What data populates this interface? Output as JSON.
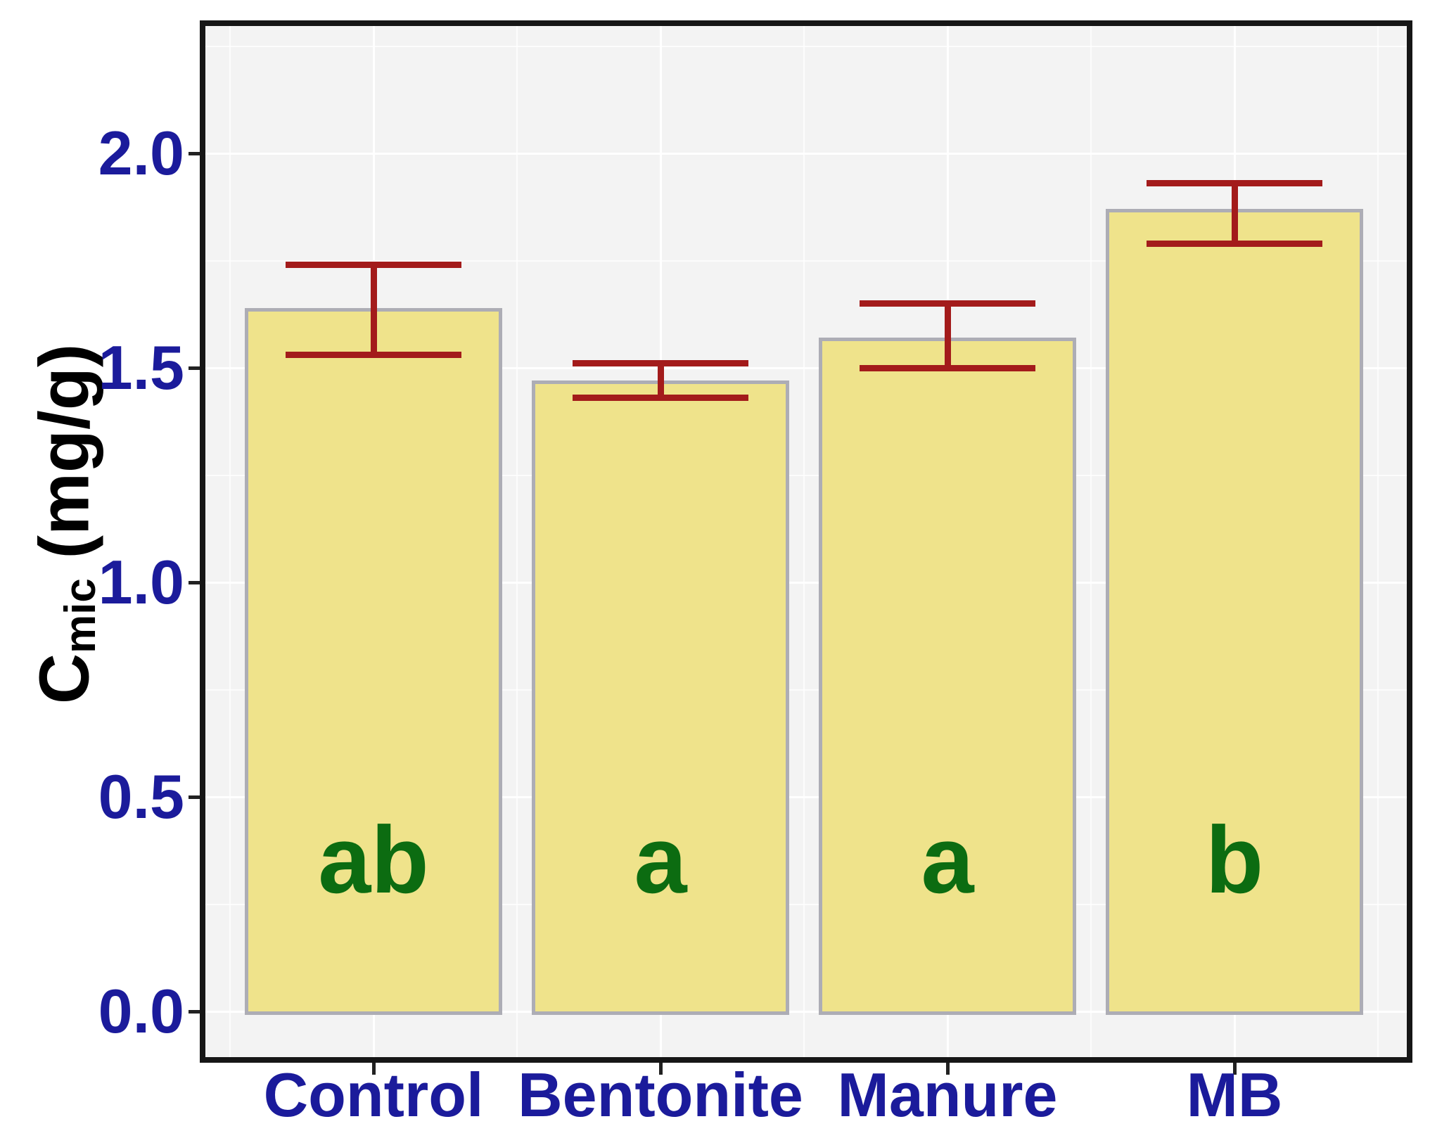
{
  "y_axis": {
    "title_main": "C",
    "title_sub": "mic",
    "title_unit": " (mg/g)",
    "tick_labels": [
      "0.0",
      "0.5",
      "1.0",
      "1.5",
      "2.0"
    ]
  },
  "x_axis": {
    "category_labels": [
      "Control",
      "Bentonite",
      "Manure",
      "MB"
    ]
  },
  "chart_data": {
    "type": "bar",
    "categories": [
      "Control",
      "Bentonite",
      "Manure",
      "MB"
    ],
    "values": [
      1.64,
      1.47,
      1.57,
      1.87
    ],
    "error_low": [
      1.53,
      1.43,
      1.5,
      1.79
    ],
    "error_high": [
      1.74,
      1.51,
      1.65,
      1.93
    ],
    "sig_letters": [
      "ab",
      "a",
      "a",
      "b"
    ],
    "title": "",
    "xlabel": "",
    "ylabel": "Cmic (mg/g)",
    "ylim": [
      -0.11,
      2.3
    ],
    "ytick_values": [
      0.0,
      0.5,
      1.0,
      1.5,
      2.0
    ],
    "ytick_minor_step": 0.25,
    "grid": true,
    "legend": false,
    "colors": {
      "bar_fill": "#efe38b",
      "bar_border": "#adadb5",
      "error_bar": "#a31b1b",
      "axis_text": "#1b1b9b",
      "sig_letter": "#0c6c11",
      "panel_background": "#f3f3f3",
      "gridline": "#ffffff",
      "panel_border": "#161616"
    }
  }
}
